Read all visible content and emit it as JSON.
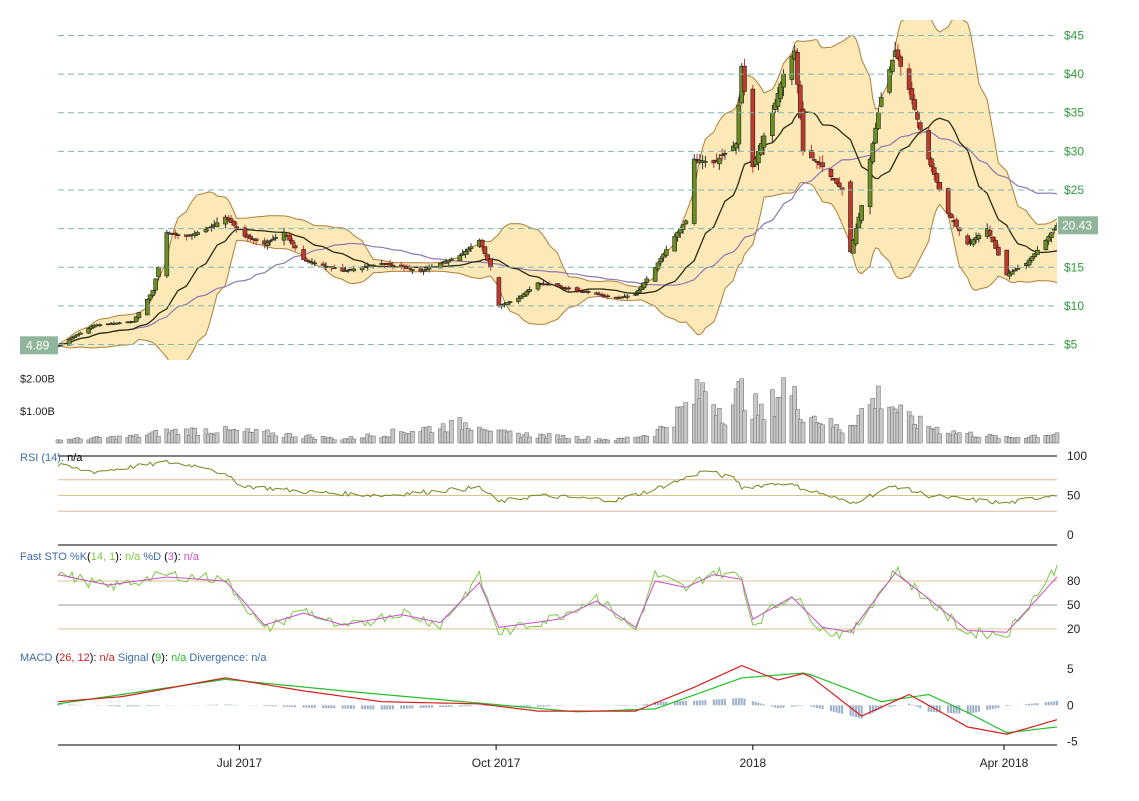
{
  "colors": {
    "up": "#6b8e23",
    "down": "#c0392b",
    "band_fill": "#fde9b8",
    "band_line": "#b07d35",
    "sma_short": "#2b2b10",
    "sma_long": "#8c78b4",
    "price_axis": "#2e9c3a",
    "label_bg": "#8fb59a",
    "volume": "#c8c8c8",
    "rsi": "#6f8a1a",
    "sto_k": "#7ac943",
    "sto_d": "#c94ec9",
    "macd": "#d62020",
    "signal": "#22c02a",
    "divergence": "#9aaec7"
  },
  "chart_data": {
    "type": "candlestick",
    "x_range": [
      "2017-04-27",
      "2018-04-20"
    ],
    "x_ticks": [
      {
        "date": "2017-07-01",
        "label": "Jul 2017"
      },
      {
        "date": "2017-10-01",
        "label": "Oct 2017"
      },
      {
        "date": "2018-01-01",
        "label": "2018"
      },
      {
        "date": "2018-04-01",
        "label": "Apr 2018"
      }
    ],
    "price_axis": {
      "ylim": [
        3,
        47
      ],
      "ticks": [
        5,
        10,
        15,
        20,
        25,
        30,
        35,
        40,
        45
      ],
      "tick_labels": [
        "$5",
        "$10",
        "$15",
        "$20",
        "$25",
        "$30",
        "$35",
        "$40",
        "$45"
      ]
    },
    "first_price_label": "4.89",
    "last_price_label": "20.43",
    "price_keypoints": [
      [
        "2017-04-27",
        4.9
      ],
      [
        "2017-05-10",
        7.5
      ],
      [
        "2017-05-24",
        8.0
      ],
      [
        "2017-05-31",
        12.0
      ],
      [
        "2017-06-05",
        19.5
      ],
      [
        "2017-06-12",
        19.0
      ],
      [
        "2017-06-20",
        20.0
      ],
      [
        "2017-06-26",
        21.5
      ],
      [
        "2017-07-03",
        19.0
      ],
      [
        "2017-07-10",
        18.0
      ],
      [
        "2017-07-17",
        19.5
      ],
      [
        "2017-07-24",
        16.0
      ],
      [
        "2017-08-07",
        14.5
      ],
      [
        "2017-08-21",
        15.5
      ],
      [
        "2017-09-04",
        14.5
      ],
      [
        "2017-09-18",
        16.5
      ],
      [
        "2017-09-25",
        18.5
      ],
      [
        "2017-09-29",
        15.0
      ],
      [
        "2017-10-02",
        10.0
      ],
      [
        "2017-10-09",
        11.0
      ],
      [
        "2017-10-16",
        13.0
      ],
      [
        "2017-10-30",
        12.0
      ],
      [
        "2017-11-13",
        11.0
      ],
      [
        "2017-11-20",
        11.5
      ],
      [
        "2017-11-27",
        15.0
      ],
      [
        "2017-12-04",
        19.0
      ],
      [
        "2017-12-08",
        21.0
      ],
      [
        "2017-12-11",
        29.0
      ],
      [
        "2017-12-18",
        28.5
      ],
      [
        "2017-12-26",
        31.0
      ],
      [
        "2017-12-28",
        41.0
      ],
      [
        "2018-01-01",
        28.0
      ],
      [
        "2018-01-08",
        35.0
      ],
      [
        "2018-01-12",
        40.0
      ],
      [
        "2018-01-16",
        43.0
      ],
      [
        "2018-01-19",
        30.0
      ],
      [
        "2018-01-26",
        28.0
      ],
      [
        "2018-02-02",
        25.0
      ],
      [
        "2018-02-05",
        17.0
      ],
      [
        "2018-02-09",
        23.0
      ],
      [
        "2018-02-16",
        37.0
      ],
      [
        "2018-02-21",
        43.0
      ],
      [
        "2018-02-26",
        38.0
      ],
      [
        "2018-03-05",
        29.0
      ],
      [
        "2018-03-12",
        22.0
      ],
      [
        "2018-03-19",
        18.0
      ],
      [
        "2018-03-26",
        20.0
      ],
      [
        "2018-04-02",
        14.0
      ],
      [
        "2018-04-09",
        15.5
      ],
      [
        "2018-04-16",
        18.5
      ],
      [
        "2018-04-20",
        20.43
      ]
    ],
    "volume_axis": {
      "ylim": [
        0,
        2.45
      ],
      "ticks": [
        1.0,
        2.0
      ],
      "tick_labels": [
        "$1.00B",
        "$2.00B"
      ]
    },
    "volume_keypoints": [
      [
        "2017-04-27",
        0.1
      ],
      [
        "2017-05-25",
        0.2
      ],
      [
        "2017-06-05",
        0.35
      ],
      [
        "2017-06-20",
        0.4
      ],
      [
        "2017-07-10",
        0.3
      ],
      [
        "2017-08-07",
        0.12
      ],
      [
        "2017-09-25",
        0.65
      ],
      [
        "2017-10-02",
        0.3
      ],
      [
        "2017-11-13",
        0.1
      ],
      [
        "2017-11-27",
        0.3
      ],
      [
        "2017-12-08",
        1.1
      ],
      [
        "2017-12-15",
        1.7
      ],
      [
        "2017-12-22",
        0.9
      ],
      [
        "2017-12-28",
        1.6
      ],
      [
        "2018-01-05",
        0.8
      ],
      [
        "2018-01-12",
        1.8
      ],
      [
        "2018-01-19",
        1.0
      ],
      [
        "2018-02-02",
        0.4
      ],
      [
        "2018-02-16",
        1.5
      ],
      [
        "2018-02-26",
        0.7
      ],
      [
        "2018-03-12",
        0.35
      ],
      [
        "2018-04-02",
        0.15
      ],
      [
        "2018-04-20",
        0.3
      ]
    ],
    "rsi": {
      "label": "RSI (14): ",
      "value_label": "n/a",
      "ylim": [
        0,
        100
      ],
      "ticks": [
        0,
        50,
        100
      ],
      "tick_labels": [
        "0",
        "50",
        "100"
      ],
      "guide_lines": [
        30,
        50,
        70
      ],
      "keypoints": [
        [
          "2017-04-27",
          88
        ],
        [
          "2017-05-10",
          80
        ],
        [
          "2017-06-05",
          92
        ],
        [
          "2017-06-20",
          86
        ],
        [
          "2017-07-03",
          62
        ],
        [
          "2017-07-24",
          55
        ],
        [
          "2017-08-21",
          50
        ],
        [
          "2017-09-25",
          60
        ],
        [
          "2017-10-02",
          42
        ],
        [
          "2017-10-16",
          50
        ],
        [
          "2017-11-13",
          44
        ],
        [
          "2017-11-27",
          58
        ],
        [
          "2017-12-08",
          72
        ],
        [
          "2017-12-15",
          82
        ],
        [
          "2017-12-26",
          70
        ],
        [
          "2017-12-28",
          60
        ],
        [
          "2018-01-12",
          66
        ],
        [
          "2018-01-26",
          52
        ],
        [
          "2018-02-05",
          40
        ],
        [
          "2018-02-21",
          62
        ],
        [
          "2018-03-05",
          50
        ],
        [
          "2018-03-19",
          45
        ],
        [
          "2018-04-02",
          40
        ],
        [
          "2018-04-20",
          52
        ]
      ]
    },
    "stochastic": {
      "label_main": "Fast STO %K",
      "k_param": "(14, 1): ",
      "k_value": "n/a",
      "d_label": " %D ",
      "d_param": "(3): ",
      "d_value": "n/a",
      "ylim": [
        0,
        100
      ],
      "ticks": [
        20,
        50,
        80
      ],
      "tick_labels": [
        "20",
        "50",
        "80"
      ],
      "k_keypoints": [
        [
          "2017-04-27",
          90
        ],
        [
          "2017-05-15",
          72
        ],
        [
          "2017-06-05",
          88
        ],
        [
          "2017-06-26",
          82
        ],
        [
          "2017-07-10",
          18
        ],
        [
          "2017-07-24",
          45
        ],
        [
          "2017-08-07",
          20
        ],
        [
          "2017-08-28",
          42
        ],
        [
          "2017-09-11",
          25
        ],
        [
          "2017-09-25",
          85
        ],
        [
          "2017-10-02",
          15
        ],
        [
          "2017-10-23",
          35
        ],
        [
          "2017-11-06",
          60
        ],
        [
          "2017-11-20",
          18
        ],
        [
          "2017-11-27",
          88
        ],
        [
          "2017-12-08",
          70
        ],
        [
          "2017-12-18",
          92
        ],
        [
          "2017-12-28",
          85
        ],
        [
          "2018-01-01",
          25
        ],
        [
          "2018-01-15",
          65
        ],
        [
          "2018-01-26",
          18
        ],
        [
          "2018-02-05",
          12
        ],
        [
          "2018-02-21",
          95
        ],
        [
          "2018-03-05",
          55
        ],
        [
          "2018-03-19",
          15
        ],
        [
          "2018-04-02",
          14
        ],
        [
          "2018-04-20",
          98
        ]
      ],
      "d_keypoints": [
        [
          "2017-04-27",
          88
        ],
        [
          "2017-05-15",
          75
        ],
        [
          "2017-06-05",
          85
        ],
        [
          "2017-06-26",
          80
        ],
        [
          "2017-07-10",
          25
        ],
        [
          "2017-07-24",
          40
        ],
        [
          "2017-08-07",
          25
        ],
        [
          "2017-08-28",
          38
        ],
        [
          "2017-09-11",
          28
        ],
        [
          "2017-09-25",
          78
        ],
        [
          "2017-10-02",
          22
        ],
        [
          "2017-10-23",
          32
        ],
        [
          "2017-11-06",
          55
        ],
        [
          "2017-11-20",
          22
        ],
        [
          "2017-11-27",
          80
        ],
        [
          "2017-12-08",
          72
        ],
        [
          "2017-12-18",
          88
        ],
        [
          "2017-12-28",
          82
        ],
        [
          "2018-01-01",
          32
        ],
        [
          "2018-01-15",
          60
        ],
        [
          "2018-01-26",
          22
        ],
        [
          "2018-02-05",
          16
        ],
        [
          "2018-02-21",
          90
        ],
        [
          "2018-03-05",
          58
        ],
        [
          "2018-03-19",
          18
        ],
        [
          "2018-04-02",
          16
        ],
        [
          "2018-04-20",
          85
        ]
      ]
    },
    "macd": {
      "label_main": "MACD ",
      "param": "(26, 12): ",
      "value": "n/a",
      "signal_label": " Signal ",
      "signal_param": "(9): ",
      "signal_value": "n/a",
      "div_label": " Divergence: ",
      "div_value": "n/a",
      "ylim": [
        -5.5,
        6
      ],
      "ticks": [
        -5,
        0,
        5
      ],
      "tick_labels": [
        "-5",
        "0",
        "5"
      ],
      "macd_keypoints": [
        [
          "2017-04-27",
          0.5
        ],
        [
          "2017-05-20",
          1.2
        ],
        [
          "2017-06-26",
          3.8
        ],
        [
          "2017-07-24",
          2.0
        ],
        [
          "2017-08-21",
          0.5
        ],
        [
          "2017-09-25",
          0.2
        ],
        [
          "2017-10-16",
          -0.8
        ],
        [
          "2017-11-20",
          -0.8
        ],
        [
          "2017-12-11",
          2.5
        ],
        [
          "2017-12-28",
          5.5
        ],
        [
          "2018-01-10",
          3.5
        ],
        [
          "2018-01-20",
          4.5
        ],
        [
          "2018-02-09",
          -1.5
        ],
        [
          "2018-02-26",
          1.5
        ],
        [
          "2018-03-19",
          -3.0
        ],
        [
          "2018-04-02",
          -4.0
        ],
        [
          "2018-04-20",
          -2.0
        ]
      ],
      "signal_keypoints": [
        [
          "2017-04-27",
          0.2
        ],
        [
          "2017-06-26",
          3.6
        ],
        [
          "2017-08-07",
          2.0
        ],
        [
          "2017-09-25",
          0.3
        ],
        [
          "2017-10-30",
          -0.9
        ],
        [
          "2017-11-27",
          -0.5
        ],
        [
          "2017-12-28",
          3.8
        ],
        [
          "2018-01-20",
          4.5
        ],
        [
          "2018-02-16",
          0.5
        ],
        [
          "2018-03-05",
          1.5
        ],
        [
          "2018-03-19",
          -1.0
        ],
        [
          "2018-04-02",
          -3.8
        ],
        [
          "2018-04-20",
          -3.0
        ]
      ]
    }
  }
}
